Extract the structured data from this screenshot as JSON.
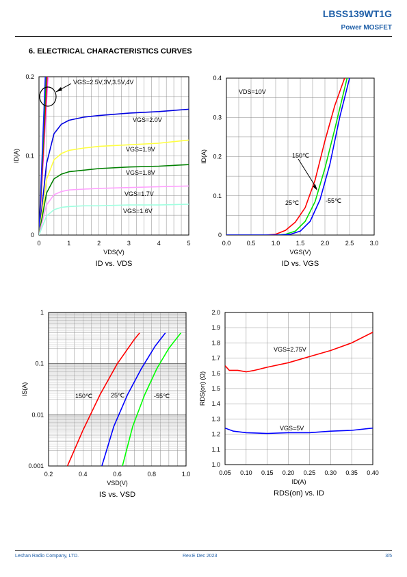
{
  "header": {
    "part_number": "LBSS139WT1G",
    "subtitle": "Power MOSFET"
  },
  "section_title": "6. ELECTRICAL CHARACTERISTICS CURVES",
  "footer": {
    "company": "Leshan Radio Company, LTD.",
    "revision": "Rev.E   Dec  2023",
    "page": "3/5"
  },
  "colors": {
    "brand": "#1f5fa8"
  },
  "chart_data": [
    {
      "type": "line",
      "title": "ID vs. VDS",
      "xlabel": "VDS(V)",
      "ylabel": "ID(A)",
      "xlim": [
        0,
        5
      ],
      "ylim": [
        0,
        0.2
      ],
      "xticks": [
        0,
        1,
        2,
        3,
        4,
        5
      ],
      "yticks": [
        0,
        0.1,
        0.2
      ],
      "xtick_labels": [
        "0",
        "1",
        "2",
        "3",
        "4",
        "5"
      ],
      "ytick_labels": [
        "0",
        "0.1",
        "0.2"
      ],
      "grid": true,
      "annotation": "VGS=2.5V,3V,3.5V,4V",
      "series": [
        {
          "name": "VGS=2.5V,3V,3.5V,4V",
          "color": "#ff40ff",
          "x": [
            0,
            0.3
          ],
          "y": [
            0,
            0.2
          ]
        },
        {
          "color": "#ff0000",
          "x": [
            0,
            0.27
          ],
          "y": [
            0,
            0.2
          ]
        },
        {
          "color": "#00a000",
          "x": [
            0,
            0.24
          ],
          "y": [
            0,
            0.2
          ]
        },
        {
          "color": "#2020ff",
          "x": [
            0,
            0.21
          ],
          "y": [
            0,
            0.2
          ]
        },
        {
          "name": "VGS=2.0V",
          "color": "#0000e0",
          "x": [
            0,
            0.25,
            0.5,
            0.75,
            1,
            1.5,
            2,
            3,
            4,
            5
          ],
          "y": [
            0,
            0.09,
            0.128,
            0.14,
            0.145,
            0.149,
            0.151,
            0.154,
            0.156,
            0.159
          ]
        },
        {
          "name": "VGS=1.9V",
          "color": "#ffff40",
          "x": [
            0,
            0.25,
            0.5,
            0.75,
            1,
            1.5,
            2,
            3,
            4,
            5
          ],
          "y": [
            0,
            0.07,
            0.095,
            0.103,
            0.107,
            0.11,
            0.112,
            0.114,
            0.116,
            0.12
          ]
        },
        {
          "name": "VGS=1.8V",
          "color": "#008000",
          "x": [
            0,
            0.25,
            0.5,
            0.75,
            1,
            1.5,
            2,
            3,
            4,
            5
          ],
          "y": [
            0,
            0.053,
            0.071,
            0.077,
            0.08,
            0.082,
            0.084,
            0.086,
            0.087,
            0.089
          ]
        },
        {
          "name": "VGS=1.7V",
          "color": "#ffa0ff",
          "x": [
            0,
            0.25,
            0.5,
            0.75,
            1,
            1.5,
            2,
            3,
            4,
            5
          ],
          "y": [
            0,
            0.038,
            0.051,
            0.055,
            0.057,
            0.058,
            0.059,
            0.06,
            0.061,
            0.062
          ]
        },
        {
          "name": "VGS=1.6V",
          "color": "#a0ffe0",
          "x": [
            0,
            0.25,
            0.5,
            0.75,
            1,
            1.5,
            2,
            3,
            4,
            5
          ],
          "y": [
            0,
            0.024,
            0.032,
            0.035,
            0.036,
            0.037,
            0.037,
            0.038,
            0.038,
            0.039
          ]
        }
      ]
    },
    {
      "type": "line",
      "title": "ID vs. VGS",
      "xlabel": "VGS(V)",
      "ylabel": "ID(A)",
      "xlim": [
        0,
        3
      ],
      "ylim": [
        0,
        0.4
      ],
      "xticks": [
        0,
        0.5,
        1,
        1.5,
        2,
        2.5,
        3
      ],
      "yticks": [
        0,
        0.1,
        0.2,
        0.3,
        0.4
      ],
      "xtick_labels": [
        "0.0",
        "0.5",
        "1.0",
        "1.5",
        "2.0",
        "2.5",
        "3.0"
      ],
      "ytick_labels": [
        "0",
        "0.1",
        "0.2",
        "0.3",
        "0.4"
      ],
      "grid": true,
      "annotation": "VDS=10V",
      "series": [
        {
          "name": "150℃",
          "color": "#ff0000",
          "x": [
            0,
            0.8,
            1.0,
            1.2,
            1.4,
            1.6,
            1.8,
            2.0,
            2.2,
            2.4
          ],
          "y": [
            0,
            0,
            0.002,
            0.012,
            0.033,
            0.07,
            0.14,
            0.24,
            0.33,
            0.4
          ]
        },
        {
          "name": "25℃",
          "color": "#00e000",
          "x": [
            0,
            1.0,
            1.2,
            1.4,
            1.6,
            1.8,
            2.0,
            2.2,
            2.45
          ],
          "y": [
            0,
            0,
            0.002,
            0.01,
            0.035,
            0.085,
            0.17,
            0.27,
            0.4
          ]
        },
        {
          "name": "-55℃",
          "color": "#0000ff",
          "x": [
            0,
            1.1,
            1.3,
            1.5,
            1.7,
            1.9,
            2.1,
            2.3,
            2.5
          ],
          "y": [
            0,
            0,
            0.002,
            0.01,
            0.035,
            0.09,
            0.18,
            0.3,
            0.4
          ]
        }
      ]
    },
    {
      "type": "line",
      "title": "IS vs. VSD",
      "xlabel": "VSD(V)",
      "ylabel": "IS(A)",
      "yscale": "log",
      "xlim": [
        0.2,
        1.0
      ],
      "ylim": [
        0.001,
        1
      ],
      "xticks": [
        0.2,
        0.4,
        0.6,
        0.8,
        1.0
      ],
      "yticks": [
        0.001,
        0.01,
        0.1,
        1
      ],
      "xtick_labels": [
        "0.2",
        "0.4",
        "0.6",
        "0.8",
        "1.0"
      ],
      "ytick_labels": [
        "0.001",
        "0.01",
        "0.1",
        "1"
      ],
      "grid": true,
      "series": [
        {
          "name": "150℃",
          "color": "#ff0000",
          "x": [
            0.31,
            0.4,
            0.5,
            0.6,
            0.7,
            0.73
          ],
          "y": [
            0.001,
            0.005,
            0.025,
            0.1,
            0.3,
            0.4
          ]
        },
        {
          "name": "25℃",
          "color": "#0000ff",
          "x": [
            0.51,
            0.58,
            0.66,
            0.74,
            0.82,
            0.88
          ],
          "y": [
            0.001,
            0.006,
            0.025,
            0.08,
            0.22,
            0.4
          ]
        },
        {
          "name": "-55℃",
          "color": "#00ff00",
          "x": [
            0.63,
            0.69,
            0.76,
            0.83,
            0.9,
            0.97
          ],
          "y": [
            0.001,
            0.006,
            0.025,
            0.08,
            0.2,
            0.4
          ]
        }
      ]
    },
    {
      "type": "line",
      "title": "RDS(on) vs. ID",
      "xlabel": "ID(A)",
      "ylabel": "RDS(on) (Ω)",
      "xlim": [
        0.05,
        0.4
      ],
      "ylim": [
        1.0,
        2.0
      ],
      "xticks": [
        0.05,
        0.1,
        0.15,
        0.2,
        0.25,
        0.3,
        0.35,
        0.4
      ],
      "yticks": [
        1.0,
        1.1,
        1.2,
        1.3,
        1.4,
        1.5,
        1.6,
        1.7,
        1.8,
        1.9,
        2.0
      ],
      "xtick_labels": [
        "0.05",
        "0.10",
        "0.15",
        "0.20",
        "0.25",
        "0.30",
        "0.35",
        "0.40"
      ],
      "ytick_labels": [
        "1.0",
        "1.1",
        "1.2",
        "1.3",
        "1.4",
        "1.5",
        "1.6",
        "1.7",
        "1.8",
        "1.9",
        "2.0"
      ],
      "grid": true,
      "series": [
        {
          "name": "VGS=2.75V",
          "color": "#ff0000",
          "x": [
            0.05,
            0.06,
            0.08,
            0.1,
            0.12,
            0.15,
            0.2,
            0.25,
            0.3,
            0.35,
            0.4
          ],
          "y": [
            1.65,
            1.62,
            1.62,
            1.61,
            1.62,
            1.64,
            1.67,
            1.71,
            1.75,
            1.8,
            1.87
          ]
        },
        {
          "name": "VGS=5V",
          "color": "#0000ff",
          "x": [
            0.05,
            0.07,
            0.1,
            0.15,
            0.2,
            0.25,
            0.3,
            0.35,
            0.4
          ],
          "y": [
            1.24,
            1.22,
            1.21,
            1.205,
            1.21,
            1.21,
            1.22,
            1.225,
            1.24
          ]
        }
      ]
    }
  ]
}
